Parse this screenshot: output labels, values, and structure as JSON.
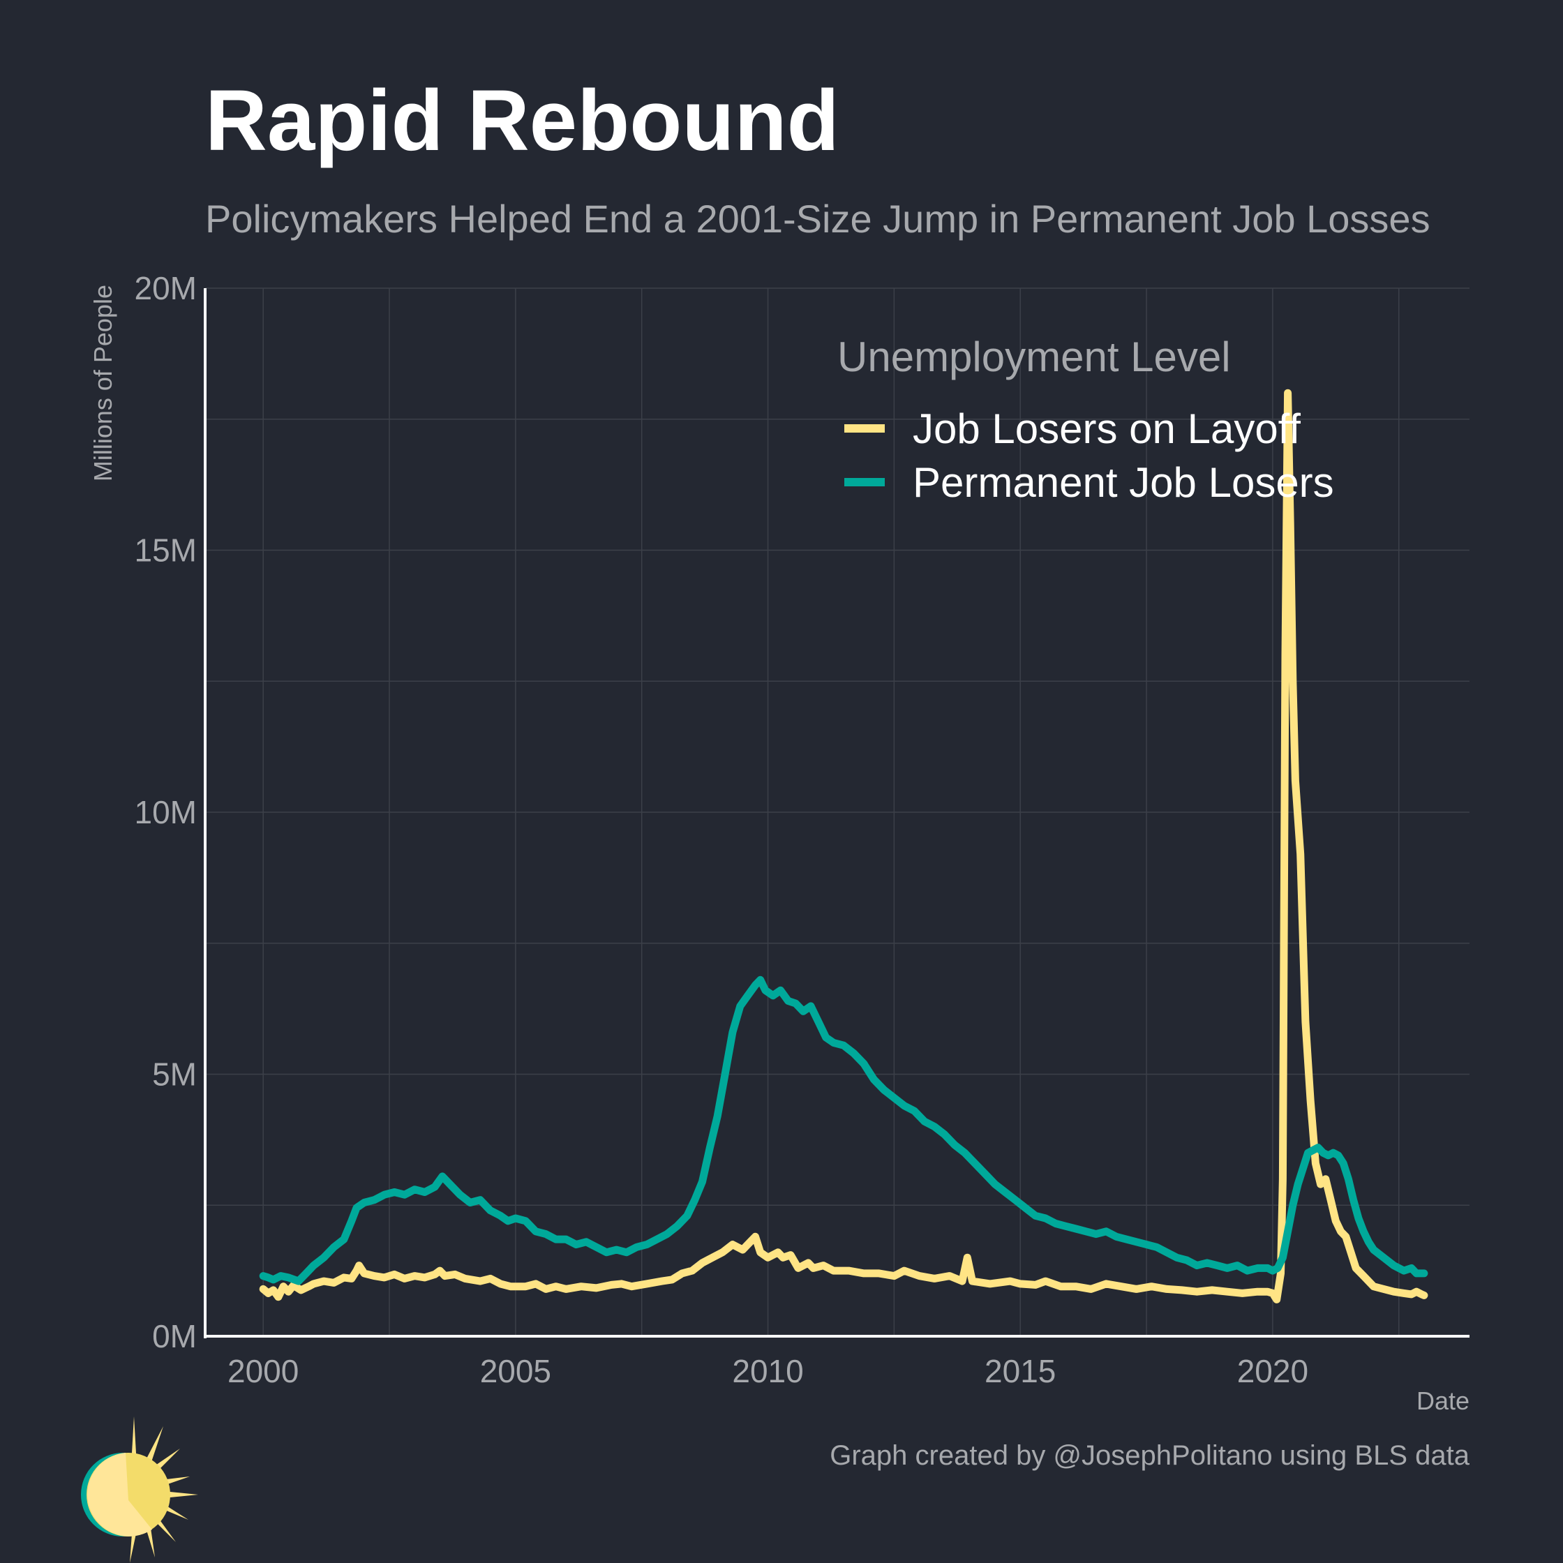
{
  "title": "Rapid Rebound",
  "subtitle": "Policymakers Helped End a 2001-Size Jump in Permanent Job Losses",
  "caption": "Graph created by @JosephPolitano using BLS data",
  "logo_icon": "sun-logo-icon",
  "colors": {
    "background": "#242832",
    "grid": "#3c4049",
    "axis": "#ffffff",
    "muted_text": "#a7a9ad",
    "layoff": "#ffe485",
    "permanent": "#00a99a"
  },
  "chart_data": {
    "type": "line",
    "title": "Rapid Rebound",
    "subtitle": "Policymakers Helped End a 2001-Size Jump in Permanent Job Losses",
    "xlabel": "Date",
    "ylabel": "Millions of People",
    "xlim": [
      1998.85,
      2023.9
    ],
    "ylim": [
      0,
      20
    ],
    "x_ticks": [
      2000,
      2005,
      2010,
      2015,
      2020
    ],
    "x_tick_labels": [
      "2000",
      "2005",
      "2010",
      "2015",
      "2020"
    ],
    "y_ticks": [
      0,
      5,
      10,
      15,
      20
    ],
    "y_tick_labels": [
      "0M",
      "5M",
      "10M",
      "15M",
      "20M"
    ],
    "grid": true,
    "legend_title": "Unemployment Level",
    "legend_position": "top-right",
    "series": [
      {
        "name": "Job Losers on Layoff",
        "color": "#ffe485",
        "points": [
          [
            2000.0,
            0.9
          ],
          [
            2000.1,
            0.82
          ],
          [
            2000.2,
            0.88
          ],
          [
            2000.3,
            0.75
          ],
          [
            2000.4,
            0.95
          ],
          [
            2000.5,
            0.85
          ],
          [
            2000.6,
            0.97
          ],
          [
            2000.75,
            0.88
          ],
          [
            2000.9,
            0.95
          ],
          [
            2001.0,
            1.0
          ],
          [
            2001.2,
            1.05
          ],
          [
            2001.4,
            1.02
          ],
          [
            2001.6,
            1.12
          ],
          [
            2001.75,
            1.1
          ],
          [
            2001.85,
            1.25
          ],
          [
            2001.9,
            1.35
          ],
          [
            2002.0,
            1.2
          ],
          [
            2002.2,
            1.15
          ],
          [
            2002.4,
            1.12
          ],
          [
            2002.6,
            1.18
          ],
          [
            2002.8,
            1.1
          ],
          [
            2003.0,
            1.15
          ],
          [
            2003.2,
            1.12
          ],
          [
            2003.4,
            1.18
          ],
          [
            2003.5,
            1.25
          ],
          [
            2003.6,
            1.15
          ],
          [
            2003.8,
            1.18
          ],
          [
            2004.0,
            1.1
          ],
          [
            2004.3,
            1.05
          ],
          [
            2004.5,
            1.1
          ],
          [
            2004.7,
            1.0
          ],
          [
            2004.9,
            0.95
          ],
          [
            2005.2,
            0.95
          ],
          [
            2005.4,
            1.0
          ],
          [
            2005.6,
            0.9
          ],
          [
            2005.8,
            0.95
          ],
          [
            2006.0,
            0.9
          ],
          [
            2006.3,
            0.95
          ],
          [
            2006.6,
            0.92
          ],
          [
            2006.9,
            0.98
          ],
          [
            2007.1,
            1.0
          ],
          [
            2007.3,
            0.95
          ],
          [
            2007.6,
            1.0
          ],
          [
            2007.9,
            1.05
          ],
          [
            2008.1,
            1.08
          ],
          [
            2008.3,
            1.2
          ],
          [
            2008.5,
            1.25
          ],
          [
            2008.7,
            1.4
          ],
          [
            2008.9,
            1.5
          ],
          [
            2009.1,
            1.6
          ],
          [
            2009.3,
            1.75
          ],
          [
            2009.5,
            1.65
          ],
          [
            2009.65,
            1.8
          ],
          [
            2009.75,
            1.9
          ],
          [
            2009.85,
            1.6
          ],
          [
            2010.0,
            1.5
          ],
          [
            2010.2,
            1.6
          ],
          [
            2010.3,
            1.5
          ],
          [
            2010.45,
            1.55
          ],
          [
            2010.6,
            1.3
          ],
          [
            2010.8,
            1.4
          ],
          [
            2010.9,
            1.3
          ],
          [
            2011.1,
            1.35
          ],
          [
            2011.3,
            1.25
          ],
          [
            2011.6,
            1.25
          ],
          [
            2011.9,
            1.2
          ],
          [
            2012.2,
            1.2
          ],
          [
            2012.5,
            1.15
          ],
          [
            2012.7,
            1.25
          ],
          [
            2013.0,
            1.15
          ],
          [
            2013.3,
            1.1
          ],
          [
            2013.6,
            1.15
          ],
          [
            2013.85,
            1.05
          ],
          [
            2013.95,
            1.5
          ],
          [
            2014.05,
            1.05
          ],
          [
            2014.4,
            1.0
          ],
          [
            2014.8,
            1.05
          ],
          [
            2015.0,
            1.0
          ],
          [
            2015.3,
            0.98
          ],
          [
            2015.5,
            1.05
          ],
          [
            2015.8,
            0.95
          ],
          [
            2016.1,
            0.95
          ],
          [
            2016.4,
            0.9
          ],
          [
            2016.7,
            1.0
          ],
          [
            2017.0,
            0.95
          ],
          [
            2017.3,
            0.9
          ],
          [
            2017.6,
            0.95
          ],
          [
            2017.9,
            0.9
          ],
          [
            2018.2,
            0.88
          ],
          [
            2018.5,
            0.85
          ],
          [
            2018.8,
            0.88
          ],
          [
            2019.1,
            0.85
          ],
          [
            2019.4,
            0.82
          ],
          [
            2019.7,
            0.85
          ],
          [
            2019.9,
            0.85
          ],
          [
            2020.0,
            0.82
          ],
          [
            2020.08,
            0.7
          ],
          [
            2020.16,
            1.2
          ],
          [
            2020.2,
            3.0
          ],
          [
            2020.25,
            13.0
          ],
          [
            2020.3,
            18.0
          ],
          [
            2020.35,
            15.5
          ],
          [
            2020.4,
            12.5
          ],
          [
            2020.45,
            10.6
          ],
          [
            2020.55,
            9.2
          ],
          [
            2020.65,
            6.0
          ],
          [
            2020.75,
            4.5
          ],
          [
            2020.85,
            3.3
          ],
          [
            2020.95,
            2.9
          ],
          [
            2021.05,
            3.0
          ],
          [
            2021.15,
            2.6
          ],
          [
            2021.25,
            2.2
          ],
          [
            2021.35,
            2.0
          ],
          [
            2021.45,
            1.9
          ],
          [
            2021.55,
            1.6
          ],
          [
            2021.65,
            1.3
          ],
          [
            2021.8,
            1.15
          ],
          [
            2022.0,
            0.95
          ],
          [
            2022.2,
            0.9
          ],
          [
            2022.4,
            0.85
          ],
          [
            2022.6,
            0.82
          ],
          [
            2022.75,
            0.8
          ],
          [
            2022.85,
            0.85
          ],
          [
            2022.95,
            0.8
          ],
          [
            2023.0,
            0.78
          ]
        ]
      },
      {
        "name": "Permanent Job Losers",
        "color": "#00a99a",
        "points": [
          [
            2000.0,
            1.15
          ],
          [
            2000.1,
            1.12
          ],
          [
            2000.2,
            1.08
          ],
          [
            2000.35,
            1.15
          ],
          [
            2000.5,
            1.12
          ],
          [
            2000.7,
            1.05
          ],
          [
            2000.85,
            1.2
          ],
          [
            2001.0,
            1.35
          ],
          [
            2001.2,
            1.5
          ],
          [
            2001.4,
            1.7
          ],
          [
            2001.6,
            1.85
          ],
          [
            2001.75,
            2.2
          ],
          [
            2001.85,
            2.45
          ],
          [
            2002.0,
            2.55
          ],
          [
            2002.2,
            2.6
          ],
          [
            2002.4,
            2.7
          ],
          [
            2002.6,
            2.75
          ],
          [
            2002.8,
            2.7
          ],
          [
            2003.0,
            2.8
          ],
          [
            2003.2,
            2.75
          ],
          [
            2003.4,
            2.85
          ],
          [
            2003.55,
            3.05
          ],
          [
            2003.7,
            2.9
          ],
          [
            2003.9,
            2.7
          ],
          [
            2004.1,
            2.55
          ],
          [
            2004.3,
            2.6
          ],
          [
            2004.5,
            2.4
          ],
          [
            2004.7,
            2.3
          ],
          [
            2004.85,
            2.2
          ],
          [
            2005.0,
            2.25
          ],
          [
            2005.2,
            2.2
          ],
          [
            2005.4,
            2.0
          ],
          [
            2005.6,
            1.95
          ],
          [
            2005.8,
            1.85
          ],
          [
            2006.0,
            1.85
          ],
          [
            2006.2,
            1.75
          ],
          [
            2006.4,
            1.8
          ],
          [
            2006.6,
            1.7
          ],
          [
            2006.8,
            1.6
          ],
          [
            2007.0,
            1.65
          ],
          [
            2007.2,
            1.6
          ],
          [
            2007.4,
            1.7
          ],
          [
            2007.6,
            1.75
          ],
          [
            2007.8,
            1.85
          ],
          [
            2008.0,
            1.95
          ],
          [
            2008.2,
            2.1
          ],
          [
            2008.4,
            2.3
          ],
          [
            2008.55,
            2.6
          ],
          [
            2008.7,
            2.95
          ],
          [
            2008.85,
            3.6
          ],
          [
            2009.0,
            4.2
          ],
          [
            2009.15,
            5.0
          ],
          [
            2009.3,
            5.8
          ],
          [
            2009.45,
            6.3
          ],
          [
            2009.6,
            6.5
          ],
          [
            2009.75,
            6.7
          ],
          [
            2009.85,
            6.8
          ],
          [
            2009.95,
            6.6
          ],
          [
            2010.1,
            6.5
          ],
          [
            2010.25,
            6.6
          ],
          [
            2010.4,
            6.4
          ],
          [
            2010.55,
            6.35
          ],
          [
            2010.7,
            6.2
          ],
          [
            2010.85,
            6.3
          ],
          [
            2011.0,
            6.0
          ],
          [
            2011.15,
            5.7
          ],
          [
            2011.3,
            5.6
          ],
          [
            2011.5,
            5.55
          ],
          [
            2011.7,
            5.4
          ],
          [
            2011.9,
            5.2
          ],
          [
            2012.1,
            4.9
          ],
          [
            2012.3,
            4.7
          ],
          [
            2012.5,
            4.55
          ],
          [
            2012.7,
            4.4
          ],
          [
            2012.9,
            4.3
          ],
          [
            2013.1,
            4.1
          ],
          [
            2013.3,
            4.0
          ],
          [
            2013.5,
            3.85
          ],
          [
            2013.7,
            3.65
          ],
          [
            2013.9,
            3.5
          ],
          [
            2014.1,
            3.3
          ],
          [
            2014.3,
            3.1
          ],
          [
            2014.5,
            2.9
          ],
          [
            2014.7,
            2.75
          ],
          [
            2014.9,
            2.6
          ],
          [
            2015.1,
            2.45
          ],
          [
            2015.3,
            2.3
          ],
          [
            2015.5,
            2.25
          ],
          [
            2015.7,
            2.15
          ],
          [
            2015.9,
            2.1
          ],
          [
            2016.1,
            2.05
          ],
          [
            2016.3,
            2.0
          ],
          [
            2016.5,
            1.95
          ],
          [
            2016.7,
            2.0
          ],
          [
            2016.9,
            1.9
          ],
          [
            2017.1,
            1.85
          ],
          [
            2017.3,
            1.8
          ],
          [
            2017.5,
            1.75
          ],
          [
            2017.7,
            1.7
          ],
          [
            2017.9,
            1.6
          ],
          [
            2018.1,
            1.5
          ],
          [
            2018.3,
            1.45
          ],
          [
            2018.5,
            1.35
          ],
          [
            2018.7,
            1.4
          ],
          [
            2018.9,
            1.35
          ],
          [
            2019.1,
            1.3
          ],
          [
            2019.3,
            1.35
          ],
          [
            2019.5,
            1.25
          ],
          [
            2019.7,
            1.3
          ],
          [
            2019.9,
            1.3
          ],
          [
            2020.0,
            1.25
          ],
          [
            2020.1,
            1.3
          ],
          [
            2020.2,
            1.5
          ],
          [
            2020.3,
            2.0
          ],
          [
            2020.4,
            2.5
          ],
          [
            2020.5,
            2.9
          ],
          [
            2020.6,
            3.2
          ],
          [
            2020.7,
            3.5
          ],
          [
            2020.8,
            3.55
          ],
          [
            2020.9,
            3.6
          ],
          [
            2021.0,
            3.5
          ],
          [
            2021.1,
            3.45
          ],
          [
            2021.2,
            3.5
          ],
          [
            2021.3,
            3.45
          ],
          [
            2021.4,
            3.3
          ],
          [
            2021.5,
            3.0
          ],
          [
            2021.6,
            2.6
          ],
          [
            2021.7,
            2.25
          ],
          [
            2021.8,
            2.0
          ],
          [
            2021.9,
            1.8
          ],
          [
            2022.0,
            1.65
          ],
          [
            2022.2,
            1.5
          ],
          [
            2022.4,
            1.35
          ],
          [
            2022.6,
            1.25
          ],
          [
            2022.75,
            1.3
          ],
          [
            2022.85,
            1.2
          ],
          [
            2023.0,
            1.2
          ]
        ]
      }
    ]
  }
}
